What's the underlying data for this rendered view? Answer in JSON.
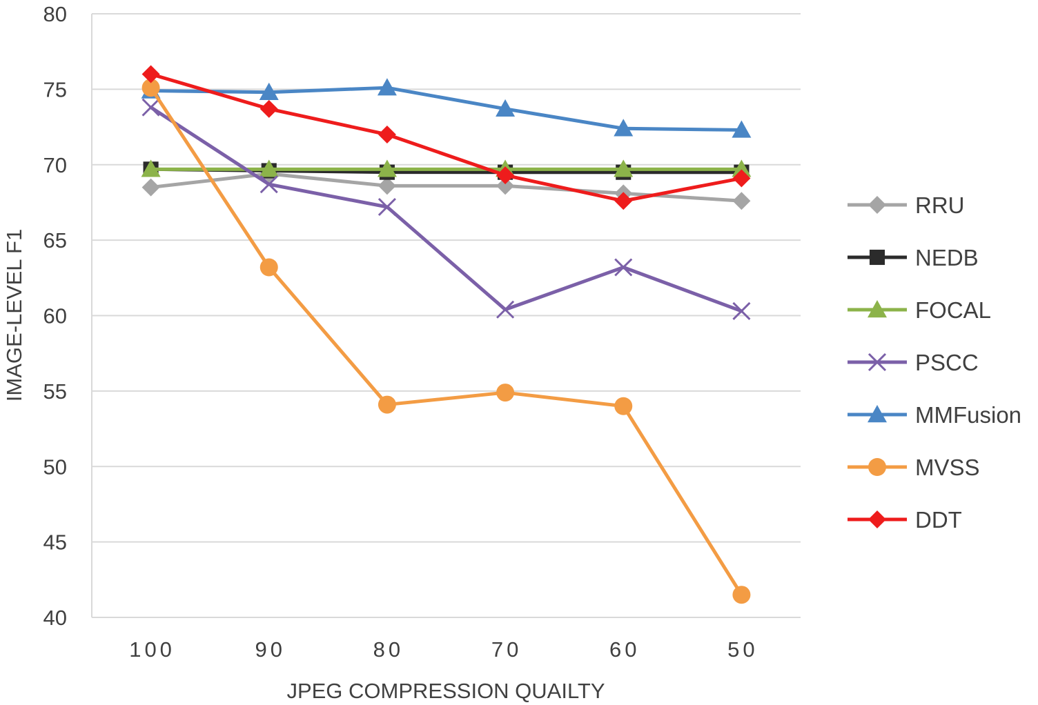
{
  "chart_data": {
    "type": "line",
    "title": "",
    "xlabel": "JPEG COMPRESSION QUAILTY",
    "ylabel": "IMAGE-LEVEL F1",
    "categories": [
      "100",
      "90",
      "80",
      "70",
      "60",
      "50"
    ],
    "ylim": [
      40,
      80
    ],
    "yticks": [
      40,
      45,
      50,
      55,
      60,
      65,
      70,
      75,
      80
    ],
    "ytick_labels": [
      "40",
      "45",
      "50",
      "55",
      "60",
      "65",
      "70",
      "75",
      "80"
    ],
    "grid": "horizontal",
    "legend_position": "right",
    "series": [
      {
        "name": "RRU",
        "color": "#a5a5a5",
        "marker": "diamond",
        "values": [
          68.5,
          69.4,
          68.6,
          68.6,
          68.1,
          67.6
        ]
      },
      {
        "name": "NEDB",
        "color": "#2b2b2b",
        "marker": "square",
        "values": [
          69.7,
          69.6,
          69.5,
          69.5,
          69.5,
          69.5
        ]
      },
      {
        "name": "FOCAL",
        "color": "#8cb34a",
        "marker": "triangle",
        "values": [
          69.7,
          69.7,
          69.7,
          69.7,
          69.7,
          69.7
        ]
      },
      {
        "name": "PSCC",
        "color": "#7b60a8",
        "marker": "x",
        "values": [
          73.8,
          68.7,
          67.2,
          60.4,
          63.2,
          60.3
        ]
      },
      {
        "name": "MMFusion",
        "color": "#4a86c5",
        "marker": "triangle",
        "values": [
          74.9,
          74.8,
          75.1,
          73.7,
          72.4,
          72.3
        ]
      },
      {
        "name": "MVSS",
        "color": "#f39c44",
        "marker": "circle",
        "values": [
          75.1,
          63.2,
          54.1,
          54.9,
          54.0,
          41.5
        ]
      },
      {
        "name": "DDT",
        "color": "#ee1c1c",
        "marker": "diamond",
        "values": [
          76.0,
          73.7,
          72.0,
          69.3,
          67.6,
          69.1
        ]
      }
    ]
  }
}
